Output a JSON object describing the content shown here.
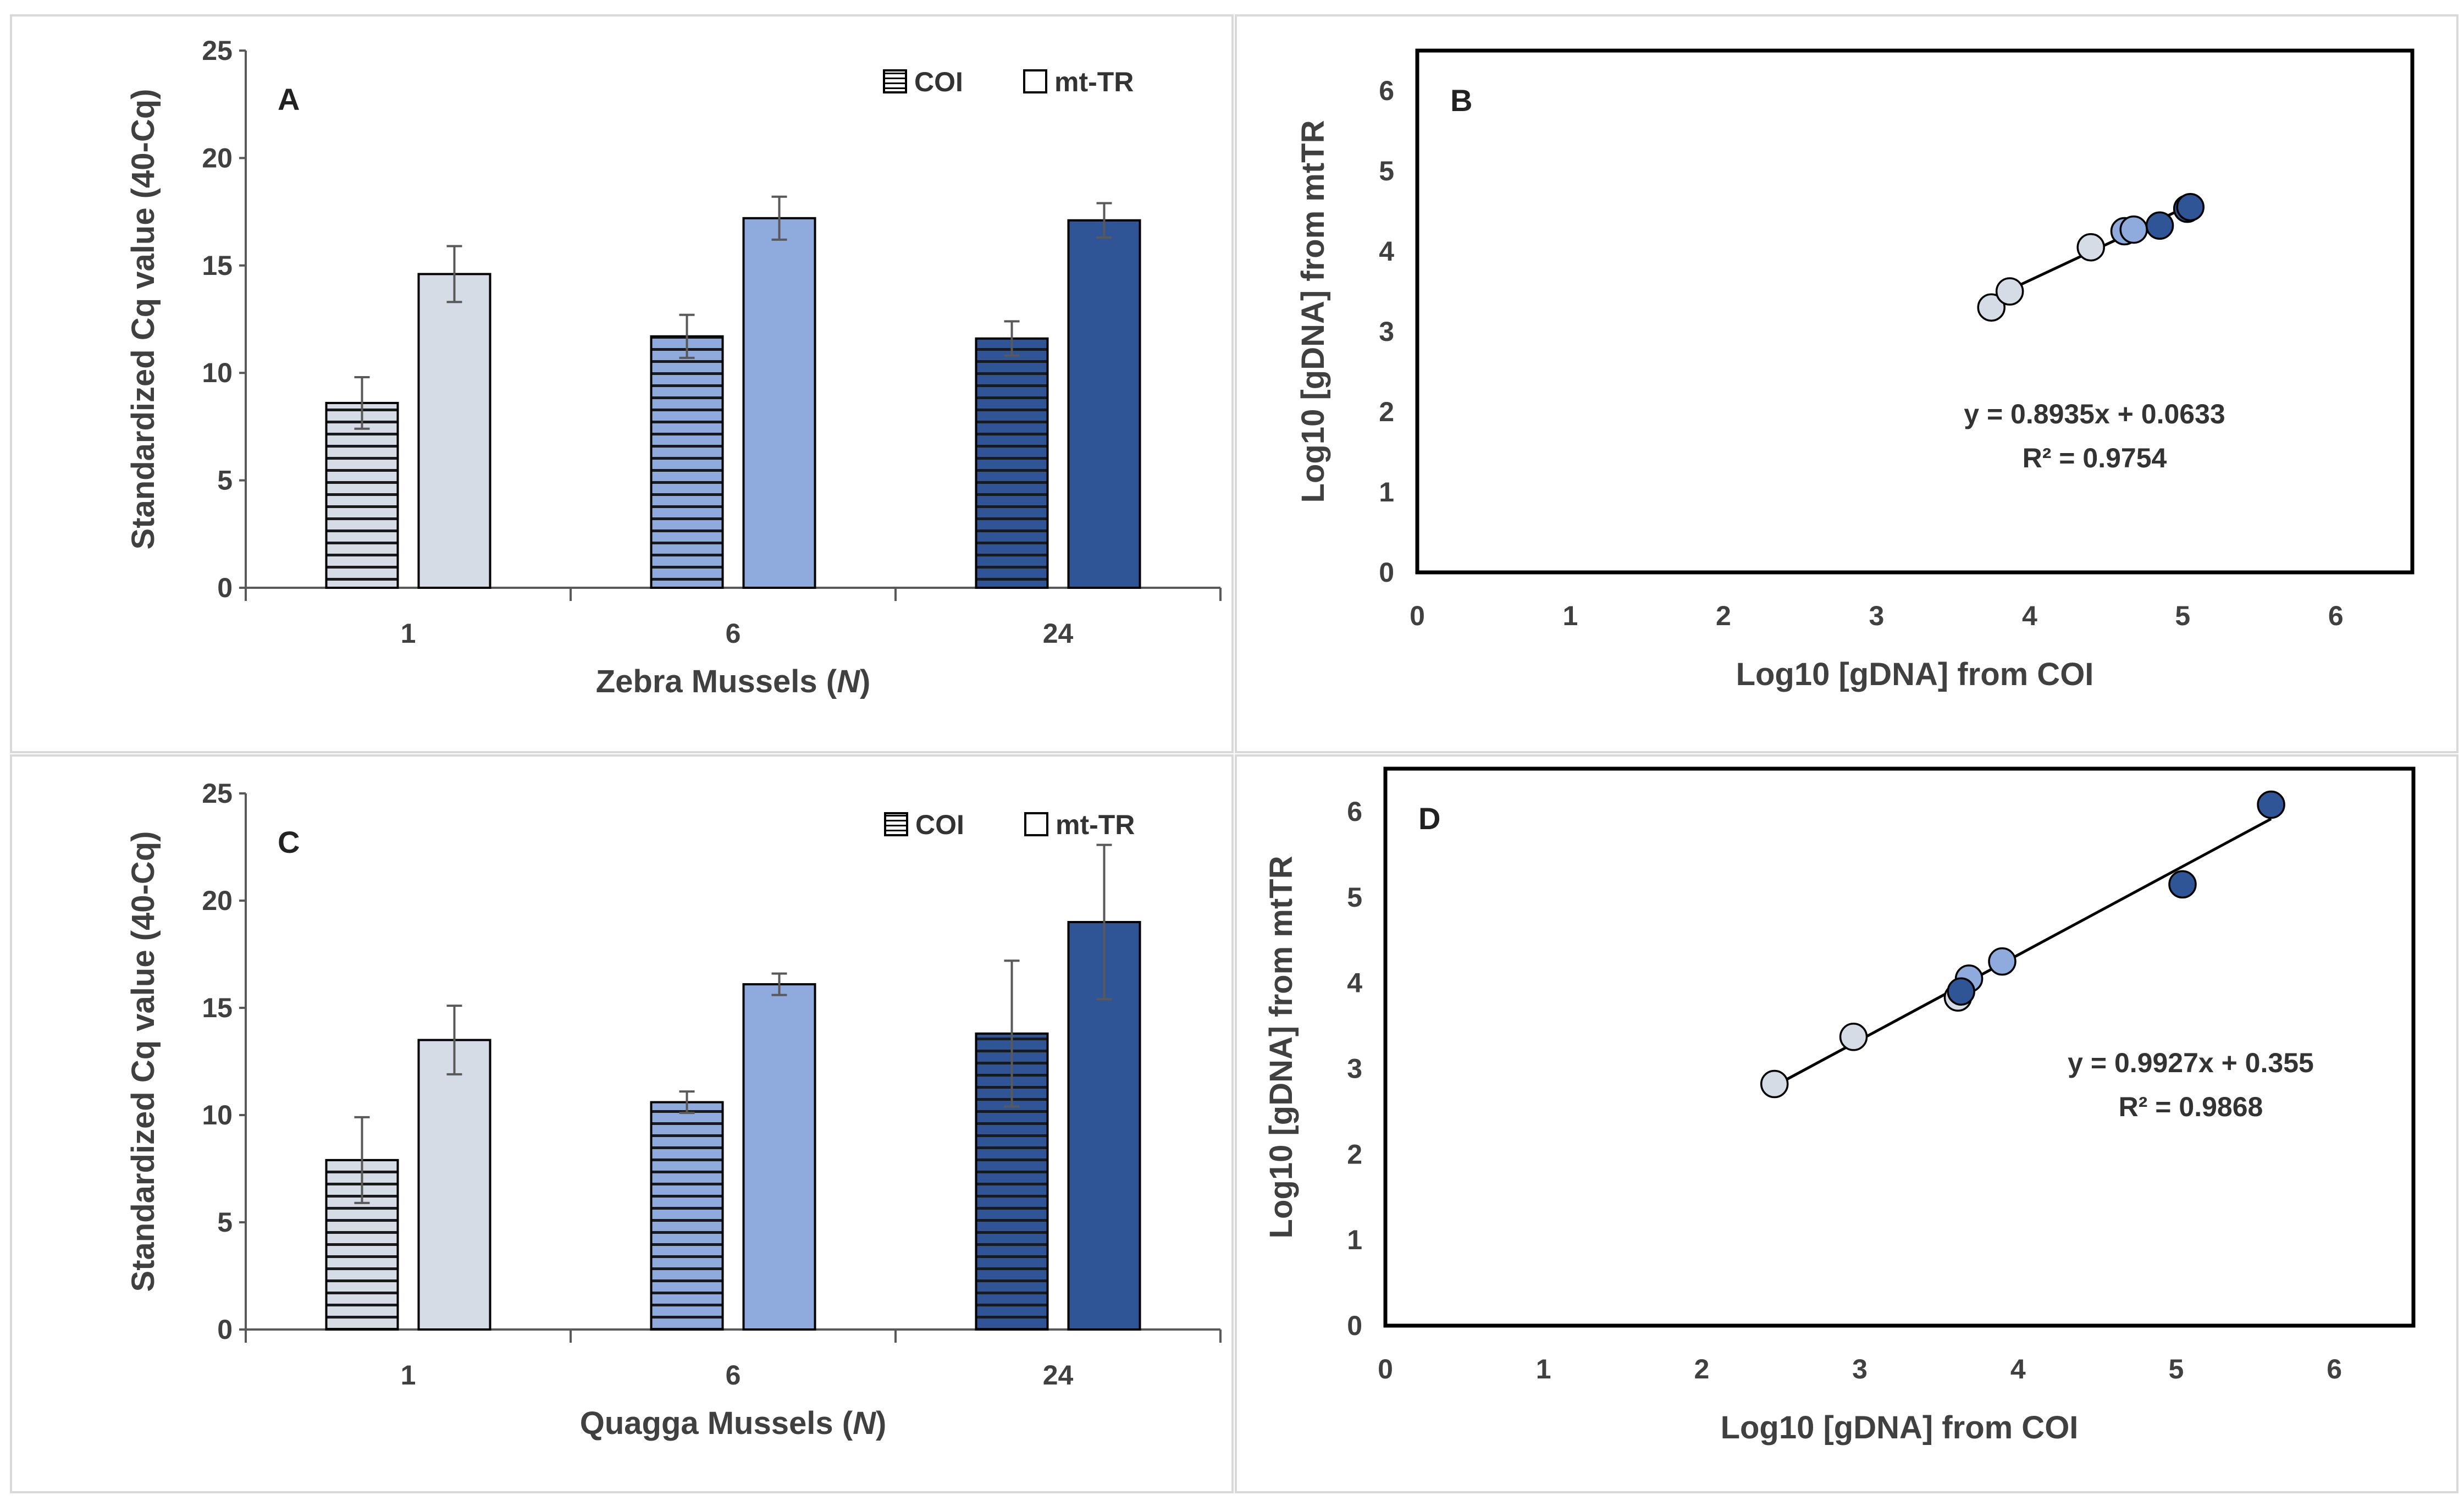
{
  "colors": {
    "light_fill": "#d6dce5",
    "mid_fill": "#8faadc",
    "dark_fill": "#2f5597",
    "stroke": "#000000",
    "axis": "#595959",
    "panel_border": "#d9d9d9",
    "fit_line": "#000000"
  },
  "chart_data": [
    {
      "id": "A",
      "type": "bar",
      "panel_label": "A",
      "title": "",
      "xlabel_prefix": "Zebra Mussels (",
      "xlabel_italic": "N",
      "xlabel_suffix": ")",
      "ylabel": "Standardized Cq value (40-Cq)",
      "ylim": [
        0,
        25
      ],
      "yticks": [
        0,
        5,
        10,
        15,
        20,
        25
      ],
      "categories": [
        "1",
        "6",
        "24"
      ],
      "legend": [
        "COI",
        "mt-TR"
      ],
      "legend_position": "top-right",
      "series": [
        {
          "name": "COI",
          "pattern": "horizontal-stripes",
          "values": [
            8.6,
            11.7,
            11.6
          ],
          "errors": [
            1.2,
            1.0,
            0.8
          ]
        },
        {
          "name": "mt-TR",
          "pattern": "solid",
          "values": [
            14.6,
            17.2,
            17.1
          ],
          "errors": [
            1.3,
            1.0,
            0.8
          ]
        }
      ]
    },
    {
      "id": "B",
      "type": "scatter",
      "panel_label": "B",
      "xlabel": "Log10 [gDNA] from COI",
      "ylabel": "Log10 [gDNA] from mtTR",
      "xlim": [
        0,
        6.5
      ],
      "ylim": [
        0,
        6.5
      ],
      "xticks": [
        0,
        1,
        2,
        3,
        4,
        5,
        6
      ],
      "yticks": [
        0,
        1,
        2,
        3,
        4,
        5,
        6
      ],
      "equation": "y = 0.8935x + 0.0633",
      "r_squared": "R² = 0.9754",
      "fit": {
        "slope": 0.8935,
        "intercept": 0.0633,
        "x_range": [
          3.75,
          5.05
        ]
      },
      "points": [
        {
          "x": 3.75,
          "y": 3.3,
          "group": "light"
        },
        {
          "x": 3.87,
          "y": 3.5,
          "group": "light"
        },
        {
          "x": 4.4,
          "y": 4.05,
          "group": "light"
        },
        {
          "x": 4.62,
          "y": 4.25,
          "group": "mid"
        },
        {
          "x": 4.68,
          "y": 4.27,
          "group": "mid"
        },
        {
          "x": 4.85,
          "y": 4.32,
          "group": "dark"
        },
        {
          "x": 5.03,
          "y": 4.53,
          "group": "dark"
        },
        {
          "x": 5.05,
          "y": 4.55,
          "group": "dark"
        }
      ]
    },
    {
      "id": "C",
      "type": "bar",
      "panel_label": "C",
      "title": "",
      "xlabel_prefix": "Quagga Mussels (",
      "xlabel_italic": "N",
      "xlabel_suffix": ")",
      "ylabel": "Standardized Cq value (40-Cq)",
      "ylim": [
        0,
        25
      ],
      "yticks": [
        0,
        5,
        10,
        15,
        20,
        25
      ],
      "categories": [
        "1",
        "6",
        "24"
      ],
      "legend": [
        "COI",
        "mt-TR"
      ],
      "legend_position": "top-right",
      "series": [
        {
          "name": "COI",
          "pattern": "horizontal-stripes",
          "values": [
            7.9,
            10.6,
            13.8
          ],
          "errors": [
            2.0,
            0.5,
            3.4
          ]
        },
        {
          "name": "mt-TR",
          "pattern": "solid",
          "values": [
            13.5,
            16.1,
            19.0
          ],
          "errors": [
            1.6,
            0.5,
            3.6
          ]
        }
      ]
    },
    {
      "id": "D",
      "type": "scatter",
      "panel_label": "D",
      "xlabel": "Log10 [gDNA] from COI",
      "ylabel": "Log10 [gDNA] from mtTR",
      "xlim": [
        0,
        6.5
      ],
      "ylim": [
        0,
        6.5
      ],
      "xticks": [
        0,
        1,
        2,
        3,
        4,
        5,
        6
      ],
      "yticks": [
        0,
        1,
        2,
        3,
        4,
        5,
        6
      ],
      "equation": "y = 0.9927x + 0.355",
      "r_squared": "R² = 0.9868",
      "fit": {
        "slope": 0.9927,
        "intercept": 0.355,
        "x_range": [
          2.45,
          5.6
        ]
      },
      "points": [
        {
          "x": 2.46,
          "y": 2.82,
          "group": "light"
        },
        {
          "x": 2.96,
          "y": 3.37,
          "group": "light"
        },
        {
          "x": 3.62,
          "y": 3.83,
          "group": "light"
        },
        {
          "x": 3.69,
          "y": 4.05,
          "group": "mid"
        },
        {
          "x": 3.9,
          "y": 4.25,
          "group": "mid"
        },
        {
          "x": 3.64,
          "y": 3.9,
          "group": "dark"
        },
        {
          "x": 5.04,
          "y": 5.15,
          "group": "dark"
        },
        {
          "x": 5.6,
          "y": 6.08,
          "group": "dark"
        }
      ]
    }
  ]
}
